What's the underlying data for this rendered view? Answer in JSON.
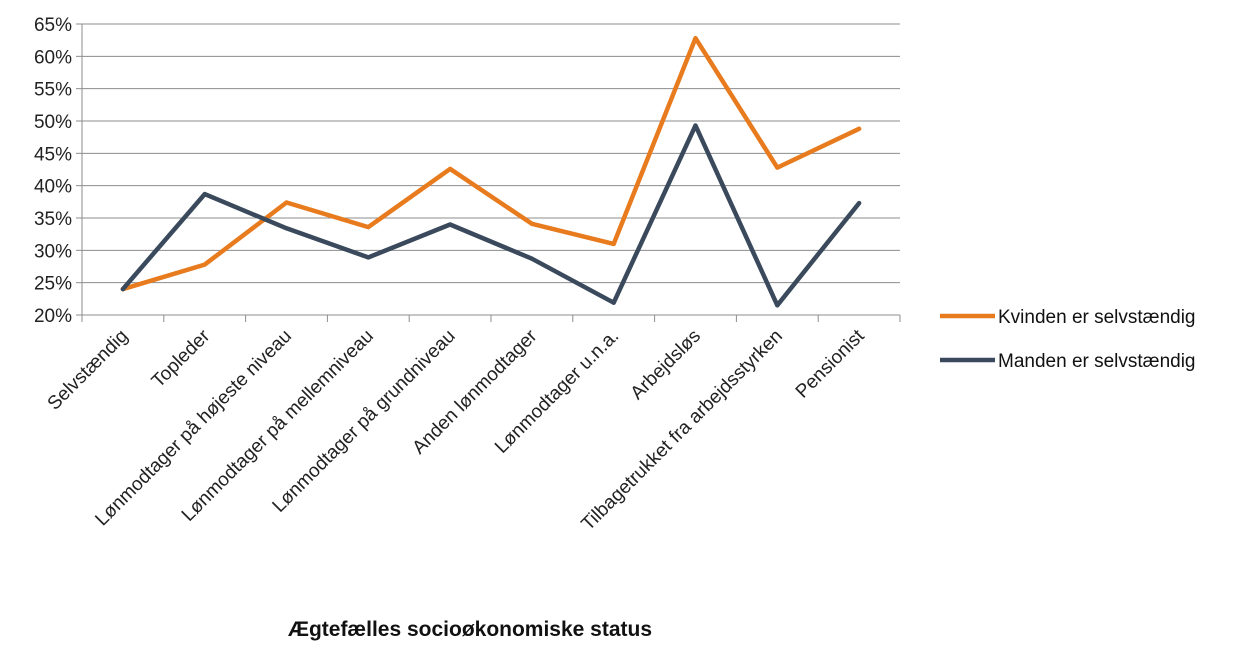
{
  "chart_data": {
    "type": "line",
    "title": "",
    "xlabel": "Ægtefælles socioøkonomiske status",
    "ylabel": "",
    "ylim": [
      20,
      65
    ],
    "yticks": [
      20,
      25,
      30,
      35,
      40,
      45,
      50,
      55,
      60,
      65
    ],
    "ytick_labels": [
      "20%",
      "25%",
      "30%",
      "35%",
      "40%",
      "45%",
      "50%",
      "55%",
      "60%",
      "65%"
    ],
    "grid": true,
    "legend_position": "right",
    "categories": [
      "Selvstændig",
      "Topleder",
      "Lønmodtager på højeste niveau",
      "Lønmodtager på mellemniveau",
      "Lønmodtager på grundniveau",
      "Anden lønmodtager",
      "Lønmodtager u.n.a.",
      "Arbejdsløs",
      "Tilbagetrukket fra arbejdsstyrken",
      "Pensionist"
    ],
    "series": [
      {
        "name": "Kvinden er selvstændig",
        "color": "#e87b1e",
        "values": [
          24.0,
          27.8,
          37.4,
          33.6,
          42.6,
          34.1,
          31.0,
          62.8,
          42.8,
          48.8
        ]
      },
      {
        "name": "Manden er selvstændig",
        "color": "#3a4a5c",
        "values": [
          24.0,
          38.7,
          33.4,
          28.9,
          34.0,
          28.7,
          21.9,
          49.3,
          21.5,
          37.3
        ]
      }
    ]
  }
}
